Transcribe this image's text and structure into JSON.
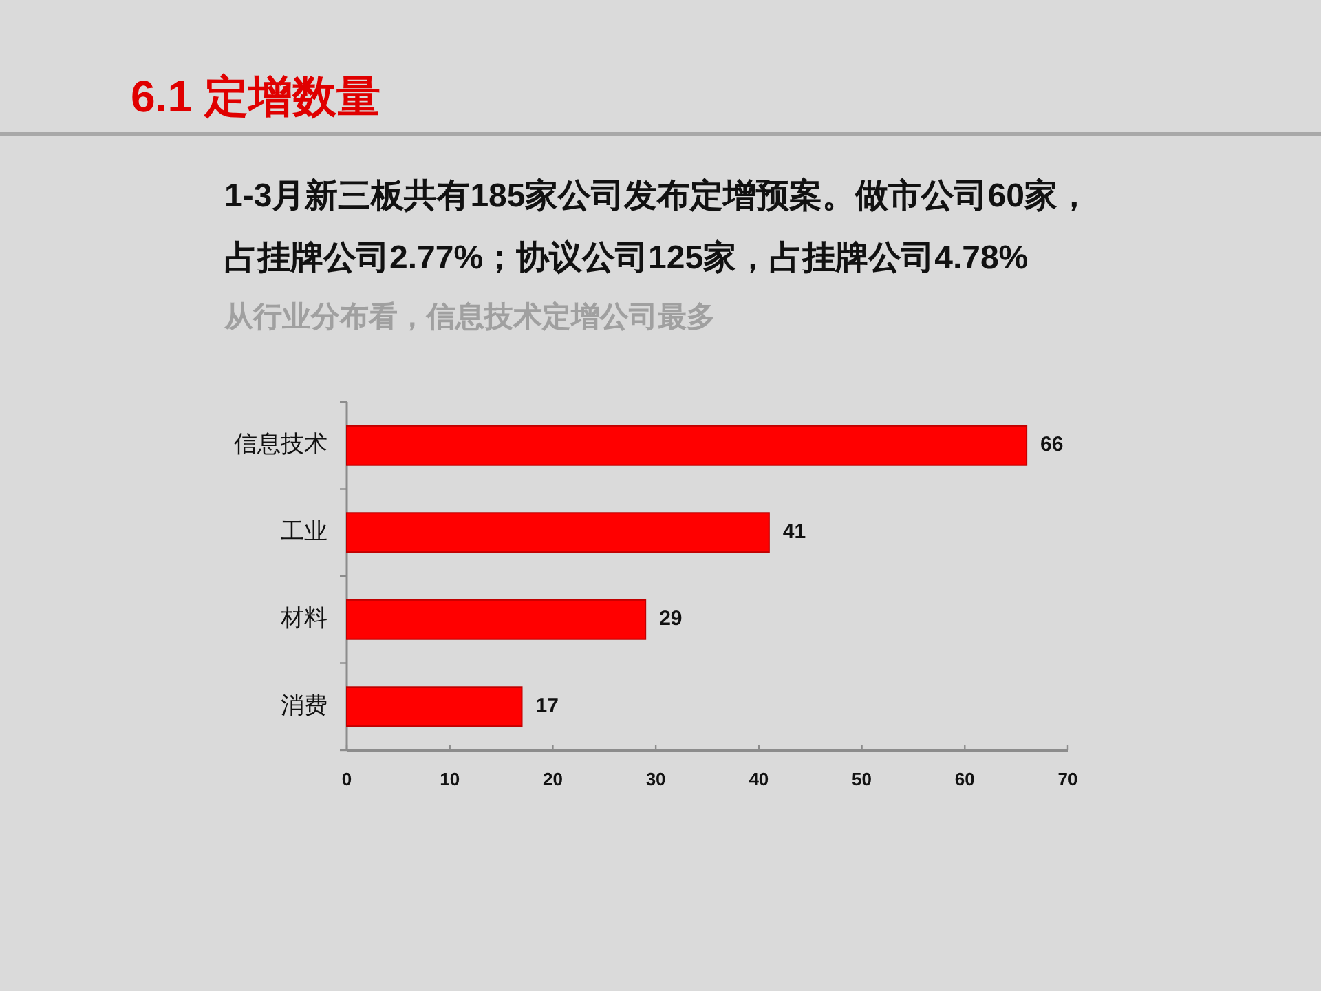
{
  "chart_data": {
    "type": "bar",
    "orientation": "horizontal",
    "title": "6.1 定增数量",
    "subtitle": "1-3月新三板共有185家公司发布定增预案。做市公司60家，占挂牌公司2.77%；协议公司125家，占挂牌公司4.78%",
    "annotations": [
      "从行业分布看，信息技术定增公司最多"
    ],
    "categories": [
      "信息技术",
      "工业",
      "材料",
      "消费"
    ],
    "values": [
      66,
      41,
      29,
      17
    ],
    "color": "#ff0000",
    "xlim": [
      0,
      70
    ],
    "xticks": [
      0,
      10,
      20,
      30,
      40,
      50,
      60,
      70
    ],
    "data_labels": true
  }
}
